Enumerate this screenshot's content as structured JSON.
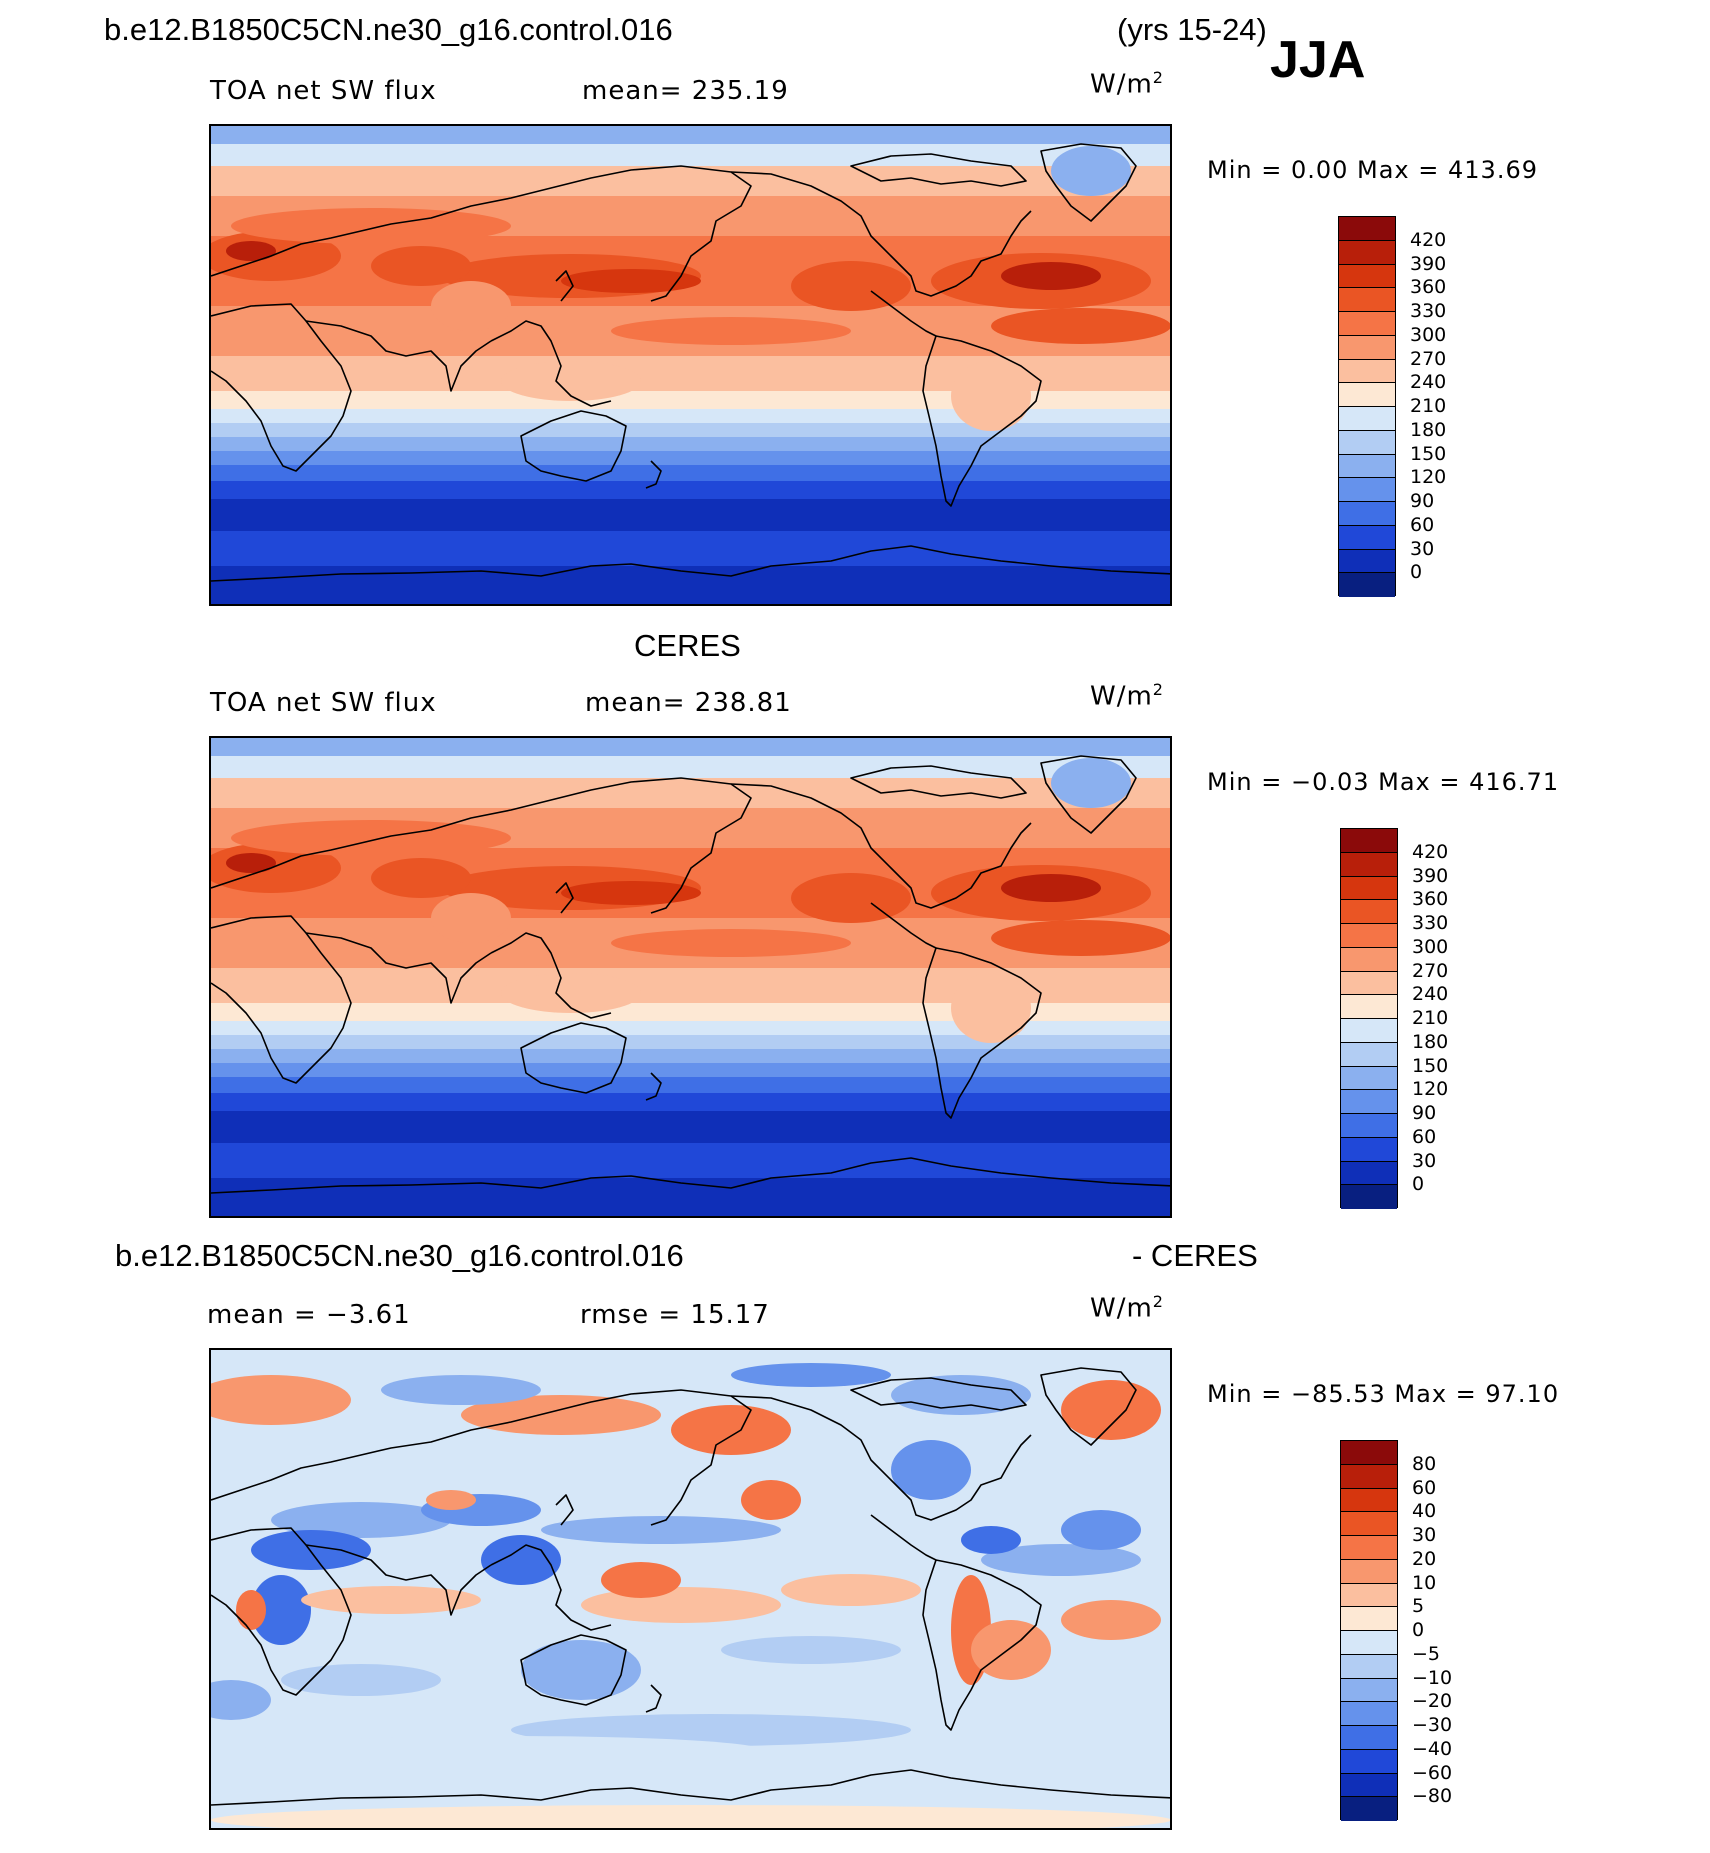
{
  "header": {
    "case_name": "b.e12.B1850C5CN.ne30_g16.control.016",
    "years": "(yrs 15-24)",
    "season": "JJA"
  },
  "panels": [
    {
      "id": "model",
      "title": "",
      "variable": "TOA net SW flux",
      "stat": "mean= 235.19",
      "units_base": "W/m",
      "units_exp": "2",
      "minmax": "Min =    0.00 Max = 413.69",
      "levels": [
        "420",
        "390",
        "360",
        "330",
        "300",
        "270",
        "240",
        "210",
        "180",
        "150",
        "120",
        "90",
        "60",
        "30",
        "0"
      ],
      "colors": [
        "#8b0a0a",
        "#b81f0a",
        "#d6360e",
        "#ea5524",
        "#f57446",
        "#f8976e",
        "#fbbf9f",
        "#fde8d4",
        "#d6e7f8",
        "#b2cdf3",
        "#8bb0ef",
        "#6592ec",
        "#3f6fe6",
        "#2048d8",
        "#0f2fb8",
        "#081f80"
      ]
    },
    {
      "id": "obs",
      "title": "CERES",
      "variable": "TOA net SW flux",
      "stat": "mean= 238.81",
      "units_base": "W/m",
      "units_exp": "2",
      "minmax": "Min =  −0.03 Max = 416.71",
      "levels": [
        "420",
        "390",
        "360",
        "330",
        "300",
        "270",
        "240",
        "210",
        "180",
        "150",
        "120",
        "90",
        "60",
        "30",
        "0"
      ],
      "colors": [
        "#8b0a0a",
        "#b81f0a",
        "#d6360e",
        "#ea5524",
        "#f57446",
        "#f8976e",
        "#fbbf9f",
        "#fde8d4",
        "#d6e7f8",
        "#b2cdf3",
        "#8bb0ef",
        "#6592ec",
        "#3f6fe6",
        "#2048d8",
        "#0f2fb8",
        "#081f80"
      ]
    },
    {
      "id": "diff",
      "title_left": "b.e12.B1850C5CN.ne30_g16.control.016",
      "title_right": "- CERES",
      "stat_left": "mean =   −3.61",
      "stat_right": "rmse =   15.17",
      "units_base": "W/m",
      "units_exp": "2",
      "minmax": "Min = −85.53 Max =   97.10",
      "levels": [
        "80",
        "60",
        "40",
        "30",
        "20",
        "10",
        "5",
        "0",
        "−5",
        "−10",
        "−20",
        "−30",
        "−40",
        "−60",
        "−80"
      ],
      "colors": [
        "#8b0a0a",
        "#b81f0a",
        "#d6360e",
        "#ea5524",
        "#f57446",
        "#f8976e",
        "#fbbf9f",
        "#fde8d4",
        "#d6e7f8",
        "#b2cdf3",
        "#8bb0ef",
        "#6592ec",
        "#3f6fe6",
        "#2048d8",
        "#0f2fb8",
        "#081f80"
      ]
    }
  ]
}
